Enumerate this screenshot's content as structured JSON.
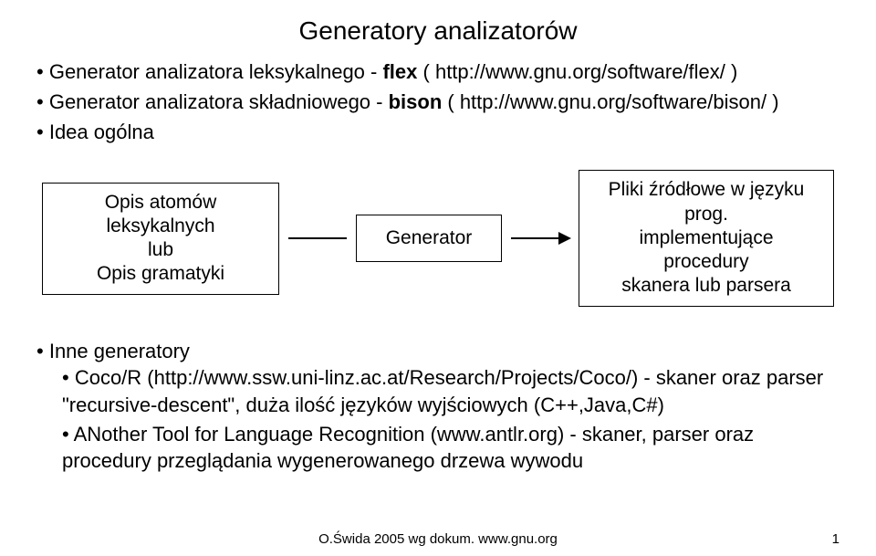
{
  "title": "Generatory analizatorów",
  "top_bullets": [
    {
      "prefix": "Generator analizatora leksykalnego - ",
      "bold": "flex",
      "suffix": " ( http://www.gnu.org/software/flex/ )"
    },
    {
      "prefix": "Generator analizatora składniowego - ",
      "bold": "bison",
      "suffix": " ( http://www.gnu.org/software/bison/ )"
    },
    {
      "prefix": "Idea ogólna",
      "bold": "",
      "suffix": ""
    }
  ],
  "diagram": {
    "left": {
      "l1": "Opis atomów leksykalnych",
      "l2": "lub",
      "l3": "Opis gramatyki"
    },
    "mid": {
      "l1": "Generator"
    },
    "right": {
      "l1": "Pliki źródłowe w języku prog.",
      "l2": "implementujące procedury",
      "l3": "skanera lub parsera"
    }
  },
  "bottom": {
    "heading": "Inne generatory",
    "items": [
      "Coco/R (http://www.ssw.uni-linz.ac.at/Research/Projects/Coco/) - skaner oraz parser \"recursive-descent\", duża ilość języków wyjściowych (C++,Java,C#)",
      "ANother Tool for Language Recognition (www.antlr.org) - skaner, parser oraz procedury przeglądania wygenerowanego drzewa wywodu"
    ]
  },
  "footer": "O.Świda 2005 wg dokum. www.gnu.org",
  "page": "1"
}
